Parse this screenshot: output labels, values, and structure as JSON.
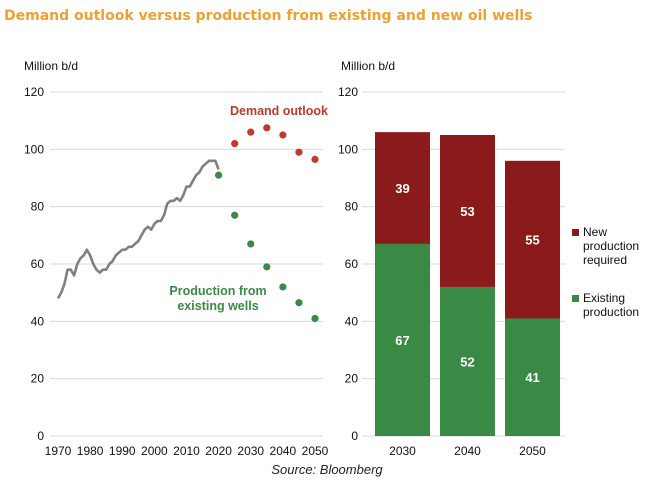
{
  "title": "Demand outlook versus production from existing and new oil wells",
  "source": "Source: Bloomberg",
  "colors": {
    "title": "#F0A030",
    "history": "#808080",
    "demand": "#C0392B",
    "existing": "#3A8A45",
    "new_production": "#8B1A1A"
  },
  "chart_data": [
    {
      "type": "line",
      "ylabel": "Million b/d",
      "xlim": [
        1970,
        2050
      ],
      "ylim": [
        0,
        120
      ],
      "yticks": [
        0,
        20,
        40,
        60,
        80,
        100,
        120
      ],
      "xticks": [
        1970,
        1980,
        1990,
        2000,
        2010,
        2020,
        2030,
        2040,
        2050
      ],
      "grid": "horizontal",
      "annotations": [
        {
          "text": "Demand outlook",
          "series": "demand"
        },
        {
          "text_lines": [
            "Production from",
            "existing wells"
          ],
          "series": "existing"
        }
      ],
      "series": [
        {
          "key": "history",
          "style": "line",
          "x": [
            1970,
            1971,
            1972,
            1973,
            1974,
            1975,
            1976,
            1977,
            1978,
            1979,
            1980,
            1981,
            1982,
            1983,
            1984,
            1985,
            1986,
            1987,
            1988,
            1989,
            1990,
            1991,
            1992,
            1993,
            1994,
            1995,
            1996,
            1997,
            1998,
            1999,
            2000,
            2001,
            2002,
            2003,
            2004,
            2005,
            2006,
            2007,
            2008,
            2009,
            2010,
            2011,
            2012,
            2013,
            2014,
            2015,
            2016,
            2017,
            2018,
            2019,
            2020
          ],
          "y": [
            48,
            50,
            53,
            58,
            58,
            56,
            60,
            62,
            63,
            65,
            63,
            60,
            58,
            57,
            58,
            58,
            60,
            61,
            63,
            64,
            65,
            65,
            66,
            66,
            67,
            68,
            70,
            72,
            73,
            72,
            74,
            75,
            75,
            77,
            81,
            82,
            82,
            83,
            82,
            84,
            87,
            87,
            89,
            91,
            92,
            94,
            95,
            96,
            96,
            96,
            93
          ]
        },
        {
          "key": "demand",
          "style": "points",
          "x": [
            2025,
            2030,
            2035,
            2040,
            2045,
            2050
          ],
          "y": [
            102,
            106,
            107.5,
            105,
            99,
            96.5
          ]
        },
        {
          "key": "existing",
          "style": "points",
          "x": [
            2020,
            2025,
            2030,
            2035,
            2040,
            2045,
            2050
          ],
          "y": [
            91,
            77,
            67,
            59,
            52,
            46.5,
            41
          ]
        }
      ]
    },
    {
      "type": "bar",
      "stacked": true,
      "ylabel": "Million b/d",
      "ylim": [
        0,
        120
      ],
      "yticks": [
        0,
        20,
        40,
        60,
        80,
        100,
        120
      ],
      "grid": "horizontal",
      "legend": "right",
      "categories": [
        "2030",
        "2040",
        "2050"
      ],
      "series": [
        {
          "name": "Existing production",
          "key": "existing",
          "values": [
            67,
            52,
            41
          ]
        },
        {
          "name": "New production required",
          "key": "new_production",
          "values": [
            39,
            53,
            55
          ]
        }
      ],
      "legend_lines": [
        {
          "key": "new_production",
          "lines": [
            "New",
            "production",
            "required"
          ]
        },
        {
          "key": "existing",
          "lines": [
            "Existing",
            "production"
          ]
        }
      ]
    }
  ]
}
